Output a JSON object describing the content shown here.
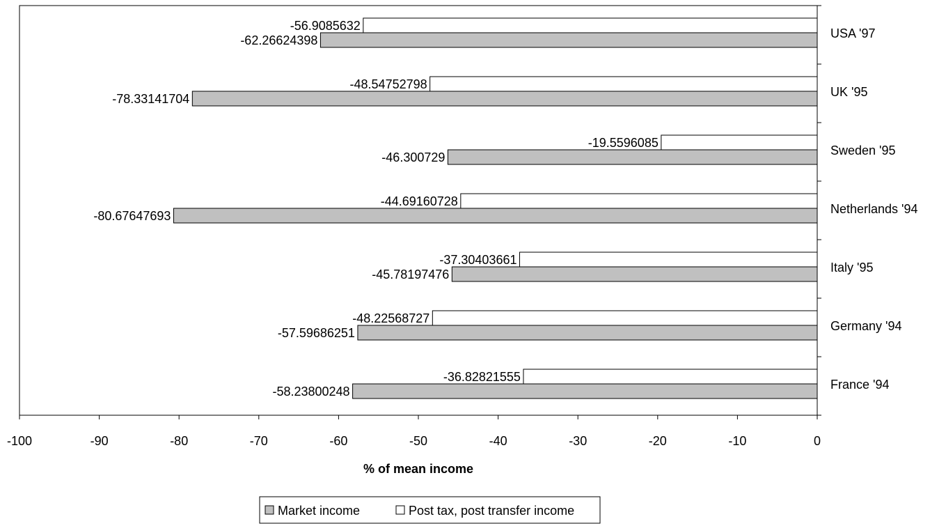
{
  "chart_data": {
    "type": "bar",
    "orientation": "horizontal",
    "categories": [
      "France '94",
      "Germany '94",
      "Italy '95",
      "Netherlands '94",
      "Sweden '95",
      "UK '95",
      "USA '97"
    ],
    "series": [
      {
        "name": "Market income",
        "color": "#c0c0c0",
        "values": [
          -58.23800248,
          -57.59686251,
          -45.78197476,
          -80.67647693,
          -46.300729,
          -78.33141704,
          -62.26624398
        ],
        "labels": [
          "-58.23800248",
          "-57.59686251",
          "-45.78197476",
          "-80.67647693",
          "-46.300729",
          "-78.33141704",
          "-62.26624398"
        ]
      },
      {
        "name": "Post tax, post transfer income",
        "color": "#ffffff",
        "values": [
          -36.82821555,
          -48.22568727,
          -37.30403661,
          -44.69160728,
          -19.5596085,
          -48.54752798,
          -56.9085632
        ],
        "labels": [
          "-36.82821555",
          "-48.22568727",
          "-37.30403661",
          "-44.69160728",
          "-19.5596085",
          "-48.54752798",
          "-56.9085632"
        ]
      }
    ],
    "xlabel": "% of mean income",
    "ylabel": "",
    "xlim": [
      -100,
      0
    ],
    "xticks": [
      -100,
      -90,
      -80,
      -70,
      -60,
      -50,
      -40,
      -30,
      -20,
      -10,
      0
    ],
    "xtick_labels": [
      "-100",
      "-90",
      "-80",
      "-70",
      "-60",
      "-50",
      "-40",
      "-30",
      "-20",
      "-10",
      "0"
    ],
    "grid": false,
    "legend_position": "bottom-center",
    "category_labels_side": "right"
  }
}
